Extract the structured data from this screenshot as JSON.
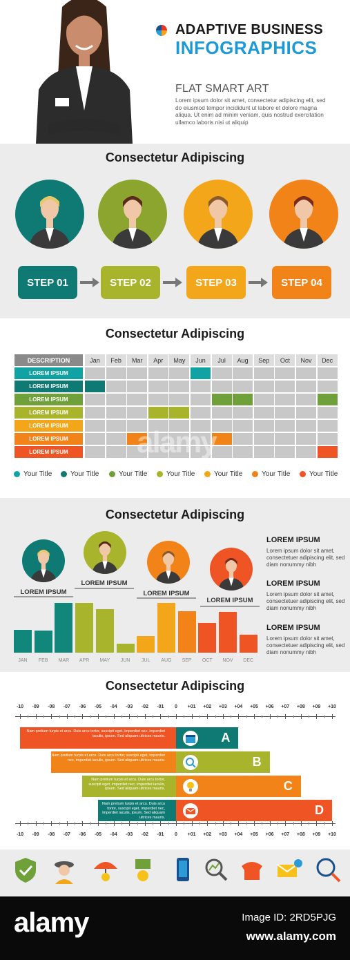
{
  "header": {
    "title_line1": "ADAPTIVE BUSINESS",
    "title_line2": "INFOGRAPHICS",
    "subtitle": "FLAT SMART ART",
    "body_text": "Lorem ipsum dolor sit amet, consectetur adipiscing elit, sed do eiusmod tempor incididunt ut labore et dolore magna aliqua. Ut enim ad minim veniam, quis nostrud exercitation ullamco laboris nisi ut aliquip"
  },
  "colors": {
    "teal": "#11877c",
    "dark_teal": "#0e6e6b",
    "green": "#6fa03a",
    "olive": "#a8b52c",
    "yellow": "#f4a61b",
    "orange": "#f28318",
    "red": "#ef5425",
    "gray_bg": "#ececec",
    "blue": "#1d9ad6"
  },
  "steps_section": {
    "title": "Consectetur Adipiscing",
    "steps": [
      {
        "label": "STEP 01",
        "color": "#0e7a73",
        "circle": "#0e7a73"
      },
      {
        "label": "STEP 02",
        "color": "#a8b52c",
        "circle": "#8ba52e"
      },
      {
        "label": "STEP 03",
        "color": "#f4a61b",
        "circle": "#f4a61b"
      },
      {
        "label": "STEP 04",
        "color": "#f28318",
        "circle": "#f28318"
      }
    ]
  },
  "gantt_section": {
    "title": "Consectetur Adipiscing",
    "desc_header": "DESCRIPTION",
    "months": [
      "Jan",
      "Feb",
      "Mar",
      "Apr",
      "May",
      "Jun",
      "Jul",
      "Aug",
      "Sep",
      "Oct",
      "Nov",
      "Dec"
    ],
    "rows": [
      {
        "label": "LOREM IPSUM",
        "color": "#11a3a3",
        "filled": [
          5
        ]
      },
      {
        "label": "LOREM IPSUM",
        "color": "#0e7a73",
        "filled": [
          0
        ]
      },
      {
        "label": "LOREM IPSUM",
        "color": "#6fa03a",
        "filled": [
          6,
          7,
          11
        ]
      },
      {
        "label": "LOREM IPSUM",
        "color": "#a8b52c",
        "filled": [
          3,
          4
        ]
      },
      {
        "label": "LOREM IPSUM",
        "color": "#f4a61b",
        "filled": []
      },
      {
        "label": "LOREM IPSUM",
        "color": "#f28318",
        "filled": [
          2,
          6
        ]
      },
      {
        "label": "LOREM IPSUM",
        "color": "#ef5425",
        "filled": [
          11
        ]
      }
    ],
    "legend": [
      {
        "label": "Your Title",
        "color": "#11a3a3"
      },
      {
        "label": "Your Title",
        "color": "#0e7a73"
      },
      {
        "label": "Your Title",
        "color": "#6fa03a"
      },
      {
        "label": "Your Title",
        "color": "#a8b52c"
      },
      {
        "label": "Your Title",
        "color": "#f4a61b"
      },
      {
        "label": "Your Title",
        "color": "#f28318"
      },
      {
        "label": "Your Title",
        "color": "#ef5425"
      }
    ]
  },
  "chart_section": {
    "title": "Consectetur Adipiscing",
    "people_labels": [
      "LOREM IPSUM",
      "LOREM IPSUM",
      "LOREM IPSUM",
      "LOREM IPSUM"
    ],
    "right_blocks": [
      {
        "heading": "LOREM IPSUM",
        "body": "Lorem ipsum dolor sit amet, consectetuer adipiscing elit, sed diam nonummy nibh"
      },
      {
        "heading": "LOREM IPSUM",
        "body": "Lorem ipsum dolor sit amet, consectetuer adipiscing elit, sed diam nonummy nibh"
      },
      {
        "heading": "LOREM IPSUM",
        "body": "Lorem ipsum dolor sit amet, consectetuer adipiscing elit, sed diam nonummy nibh"
      }
    ]
  },
  "chart_data": {
    "type": "bar",
    "categories": [
      "JAN",
      "FEB",
      "MAR",
      "APR",
      "MAY",
      "JUN",
      "JUL",
      "AUG",
      "SEP",
      "OCT",
      "NOV",
      "DEC"
    ],
    "values": [
      4.6,
      4.4,
      10,
      10,
      8.8,
      1.8,
      3.4,
      10,
      8.4,
      6.0,
      8.2,
      3.6
    ],
    "colors": [
      "#11877c",
      "#11877c",
      "#11877c",
      "#a8b52c",
      "#a8b52c",
      "#a8b52c",
      "#f4a61b",
      "#f4a61b",
      "#f28318",
      "#ef5425",
      "#ef5425",
      "#ef5425"
    ],
    "title": "",
    "xlabel": "",
    "ylabel": "",
    "ylim": [
      0,
      10
    ]
  },
  "timeline_section": {
    "title": "Consectetur Adipiscing",
    "ticks": [
      "-10",
      "-09",
      "-08",
      "-07",
      "-06",
      "-05",
      "-04",
      "-03",
      "-02",
      "-01",
      "0",
      "+01",
      "+02",
      "+03",
      "+04",
      "+05",
      "+06",
      "+07",
      "+08",
      "+09",
      "+10"
    ],
    "bars": [
      {
        "letter": "A",
        "text": "Nam pretium turpis et arcu. Duis arcu tortor, suscipit eget, imperdiet nec, imperdiet iaculis, ipsum. Sed aliquam ultrices mauris.",
        "left_color": "#ef5425",
        "right_color": "#0e7a73",
        "start": -10,
        "end": 4,
        "icon": "calendar-icon"
      },
      {
        "letter": "B",
        "text": "Nam pretium turpis et arcu. Duis arcu tortor, suscipit eget, imperdiet nec, imperdiet iaculis, ipsum. Sed aliquam ultrices mauris.",
        "left_color": "#f28318",
        "right_color": "#a8b52c",
        "start": -8,
        "end": 6,
        "icon": "search-icon"
      },
      {
        "letter": "C",
        "text": "Nam pretium turpis et arcu. Duis arcu tortor, suscipit eget, imperdiet nec, imperdiet iaculis, ipsum. Sed aliquam ultrices mauris.",
        "left_color": "#a8b52c",
        "right_color": "#f28318",
        "start": -6,
        "end": 8,
        "icon": "lightbulb-icon"
      },
      {
        "letter": "D",
        "text": "Nam pretium turpis et arcu. Duis arcu tortor, suscipit eget, imperdiet nec, imperdiet iaculis, ipsum. Sed aliquam ultrices mauris.",
        "left_color": "#0e7a73",
        "right_color": "#ef5425",
        "start": -5,
        "end": 10,
        "icon": "envelope-icon"
      }
    ]
  },
  "icon_strip": [
    "shield-check-icon",
    "detective-icon",
    "umbrella-money-icon",
    "money-hand-icon",
    "smartphone-icon",
    "magnifier-chart-icon",
    "telephone-icon",
    "email-money-icon",
    "cart-search-icon"
  ],
  "footer": {
    "brand": "alamy",
    "image_id": "Image ID: 2RD5PJG",
    "site": "www.alamy.com"
  }
}
